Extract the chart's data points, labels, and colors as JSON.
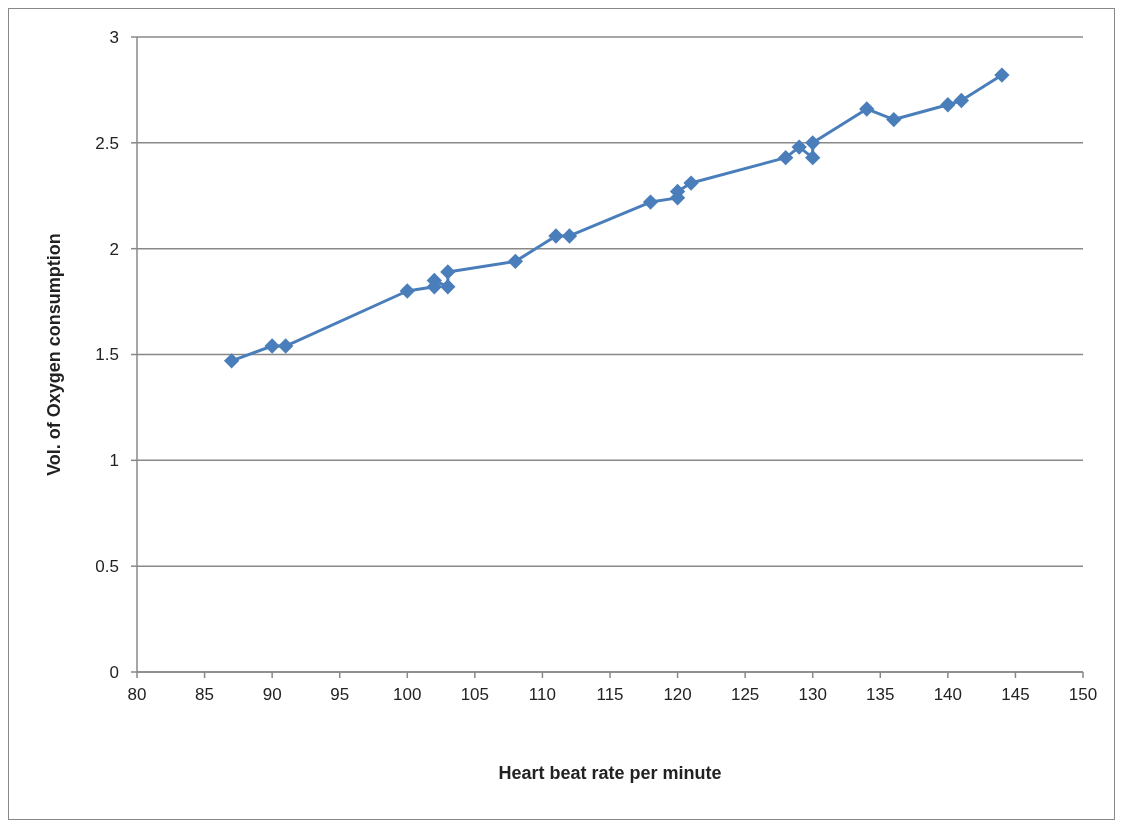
{
  "chart_data": {
    "type": "line",
    "xlabel": "Heart beat rate per minute",
    "ylabel": "Vol. of Oxygen consumption",
    "x": [
      87,
      90,
      91,
      100,
      102,
      102,
      103,
      103,
      108,
      111,
      112,
      118,
      120,
      120,
      121,
      128,
      129,
      130,
      130,
      134,
      136,
      140,
      141,
      144
    ],
    "series": [
      {
        "color": "#4a7ebb",
        "values": [
          1.47,
          1.54,
          1.54,
          1.8,
          1.82,
          1.85,
          1.82,
          1.89,
          1.94,
          2.06,
          2.06,
          2.22,
          2.24,
          2.27,
          2.31,
          2.43,
          2.48,
          2.43,
          2.5,
          2.66,
          2.61,
          2.68,
          2.7,
          2.82
        ]
      }
    ],
    "xlim": [
      80,
      150
    ],
    "xticks": [
      80,
      85,
      90,
      95,
      100,
      105,
      110,
      115,
      120,
      125,
      130,
      135,
      140,
      145,
      150
    ],
    "ylim": [
      0,
      3
    ],
    "yticks": [
      0,
      0.5,
      1,
      1.5,
      2,
      2.5,
      3
    ],
    "grid": "y",
    "marker": "diamond",
    "line_style": "solid"
  }
}
